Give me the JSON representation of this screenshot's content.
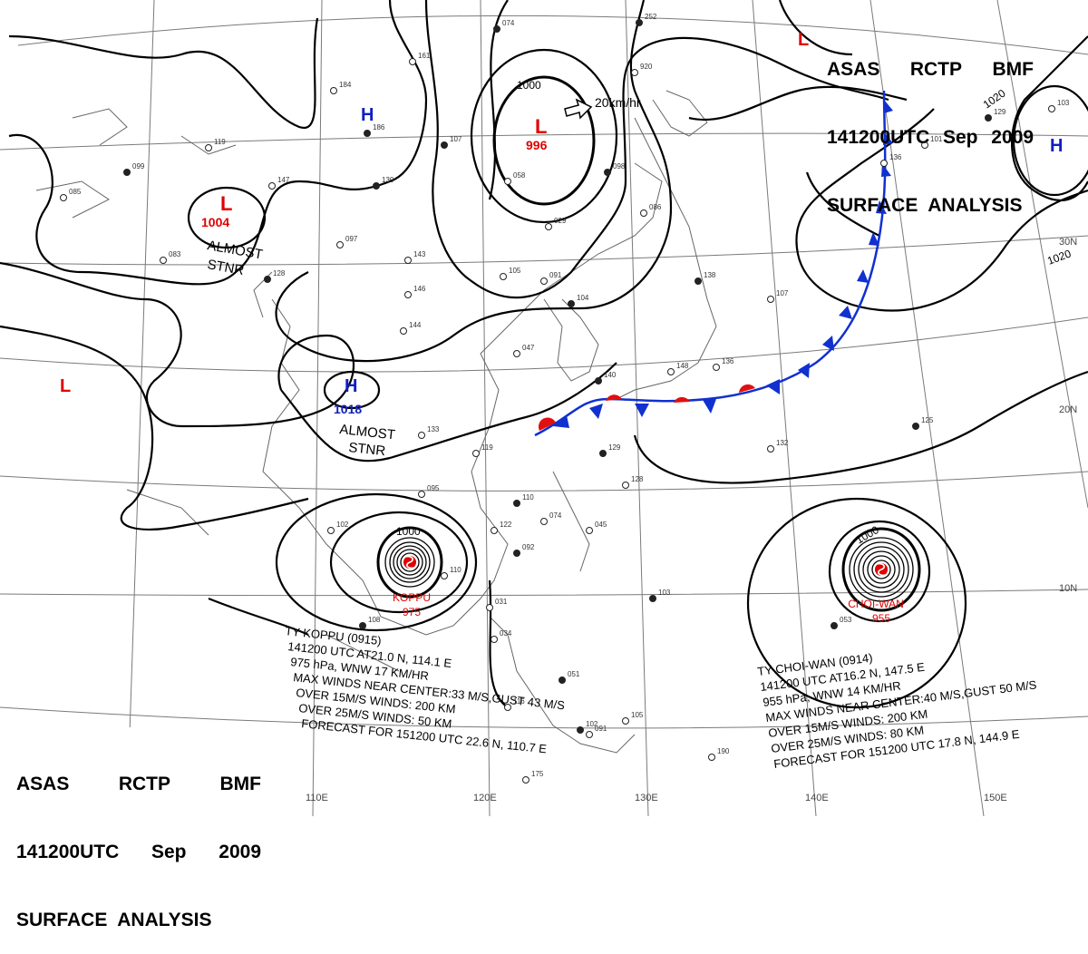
{
  "header_top": {
    "line1": [
      "ASAS",
      "RCTP",
      "BMF"
    ],
    "line2": [
      "141200UTC",
      "Sep",
      "2009"
    ],
    "line3": "SURFACE  ANALYSIS"
  },
  "header_bottom": {
    "line1": [
      "ASAS",
      "RCTP",
      "BMF"
    ],
    "line2": [
      "141200UTC",
      "Sep",
      "2009"
    ],
    "line3": "SURFACE  ANALYSIS"
  },
  "longitude_labels": [
    "110E",
    "120E",
    "130E",
    "140E",
    "150E"
  ],
  "latitude_labels": [
    "30N",
    "20N",
    "10N"
  ],
  "pressure_centers": [
    {
      "type": "L",
      "value": "996",
      "color": "#e00000"
    },
    {
      "type": "L",
      "value": "1004",
      "color": "#e00000"
    },
    {
      "type": "H",
      "value": "1018",
      "color": "#1020c0"
    },
    {
      "type": "H",
      "value": "",
      "color": "#1020c0"
    },
    {
      "type": "H",
      "value": "",
      "color": "#1020c0"
    },
    {
      "type": "L",
      "value": "",
      "color": "#e00000"
    },
    {
      "type": "L",
      "value": "",
      "color": "#e00000"
    }
  ],
  "notes": {
    "almost_stnr": "ALMOST",
    "stnr": "STNR",
    "speed": "20km/hr"
  },
  "isobar_labels": [
    "1000",
    "1000",
    "1000",
    "1020",
    "1020"
  ],
  "typhoon_koppu": {
    "name": "KOPPU",
    "pressure": "975",
    "lines": [
      "TY  KOPPU  (0915)",
      "141200 UTC  AT21.0 N, 114.1 E",
      "975 hPa, WNW  17 KM/HR",
      "MAX WINDS NEAR CENTER:33 M/S,GUST 43 M/S",
      "OVER 15M/S WINDS: 200 KM",
      "OVER 25M/S WINDS: 50 KM",
      "FORECAST FOR 151200 UTC 22.6 N, 110.7 E"
    ]
  },
  "typhoon_choiwan": {
    "name": "CHOI-WAN",
    "pressure": "955",
    "lines": [
      "TY  CHOI-WAN  (0914)",
      "141200 UTC  AT16.2 N, 147.5 E",
      "955 hPa, WNW  14 KM/HR",
      "MAX WINDS NEAR CENTER:40 M/S,GUST 50 M/S",
      "OVER 15M/S WINDS: 200 KM",
      "OVER 25M/S WINDS: 80 KM",
      "FORECAST FOR 151200 UTC 17.8 N, 144.9 E"
    ]
  },
  "stations": [
    "074",
    "161",
    "184",
    "186",
    "147",
    "119",
    "099",
    "085",
    "083",
    "130",
    "097",
    "143",
    "128",
    "146",
    "144",
    "107",
    "105",
    "091",
    "104",
    "058",
    "136",
    "138",
    "086",
    "029",
    "098",
    "047",
    "148",
    "140",
    "133",
    "119",
    "129",
    "128",
    "095",
    "110",
    "122",
    "074",
    "092",
    "102",
    "110",
    "108",
    "031",
    "034",
    "051",
    "091",
    "105",
    "103",
    "107",
    "101",
    "129",
    "103",
    "136",
    "125",
    "190",
    "175",
    "252",
    "920",
    "132",
    "102",
    "116",
    "045",
    "053"
  ],
  "colors": {
    "isobar": "#000000",
    "coast": "#555555",
    "grid": "#777777",
    "cold_front": "#1030d0",
    "warm_front": "#e01010",
    "low": "#e00000",
    "high": "#1020c0"
  }
}
